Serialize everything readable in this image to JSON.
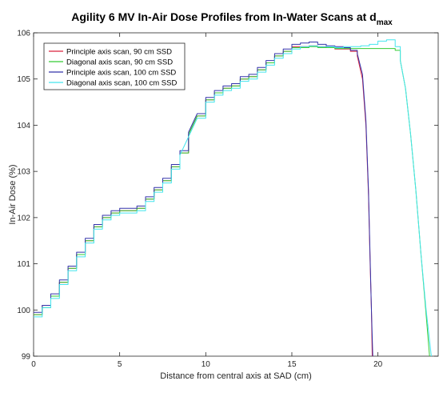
{
  "chart_data": {
    "type": "line",
    "title": "Agility 6 MV In-Air Dose Profiles from In-Water Scans at d",
    "title_subscript": "max",
    "xlabel": "Distance from central axis at SAD (cm)",
    "ylabel": "In-Air Dose (%)",
    "xlim": [
      0,
      23.5
    ],
    "ylim": [
      99,
      106
    ],
    "xticks": [
      0,
      5,
      10,
      15,
      20
    ],
    "yticks": [
      99,
      100,
      101,
      102,
      103,
      104,
      105,
      106
    ],
    "grid": false,
    "legend_position": "top-left",
    "series": [
      {
        "name": "Principle axis scan, 90 cm SSD",
        "color": "#d9213c",
        "x": [
          0,
          0.5,
          1,
          1.5,
          2,
          2.5,
          3,
          3.5,
          4,
          4.5,
          5,
          5.5,
          6,
          6.5,
          7,
          7.5,
          8,
          8.5,
          9,
          9.5,
          10,
          10.5,
          11,
          11.5,
          12,
          12.5,
          13,
          13.5,
          14,
          14.5,
          15,
          15.5,
          16,
          16.5,
          17,
          17.5,
          18,
          18.4,
          18.8,
          19.1,
          19.3,
          19.45,
          19.55,
          19.62,
          19.67
        ],
        "y": [
          99.9,
          100.1,
          100.3,
          100.6,
          100.9,
          101.2,
          101.5,
          101.8,
          102.0,
          102.1,
          102.15,
          102.15,
          102.2,
          102.4,
          102.6,
          102.8,
          103.1,
          103.4,
          103.8,
          104.2,
          104.55,
          104.7,
          104.8,
          104.85,
          105.0,
          105.05,
          105.2,
          105.35,
          105.5,
          105.6,
          105.7,
          105.7,
          105.72,
          105.7,
          105.68,
          105.65,
          105.65,
          105.6,
          105.5,
          105.0,
          104.0,
          102.5,
          101.0,
          100.0,
          99.0
        ]
      },
      {
        "name": "Diagonal axis scan, 90 cm SSD",
        "color": "#33cc33",
        "x": [
          0,
          0.5,
          1,
          1.5,
          2,
          2.5,
          3,
          3.5,
          4,
          4.5,
          5,
          5.5,
          6,
          6.5,
          7,
          7.5,
          8,
          8.5,
          9,
          9.5,
          10,
          10.5,
          11,
          11.5,
          12,
          12.5,
          13,
          13.5,
          14,
          14.5,
          15,
          15.5,
          16,
          16.5,
          17,
          17.5,
          18,
          18.5,
          19,
          19.5,
          20,
          20.5,
          21,
          21.3,
          21.6,
          21.9,
          22.2,
          22.5,
          22.8,
          23.0
        ],
        "y": [
          99.9,
          100.05,
          100.3,
          100.6,
          100.9,
          101.2,
          101.5,
          101.8,
          102.0,
          102.1,
          102.15,
          102.15,
          102.2,
          102.4,
          102.6,
          102.8,
          103.1,
          103.4,
          103.8,
          104.2,
          104.55,
          104.7,
          104.8,
          104.85,
          105.0,
          105.05,
          105.2,
          105.35,
          105.5,
          105.6,
          105.68,
          105.68,
          105.7,
          105.68,
          105.68,
          105.66,
          105.66,
          105.66,
          105.66,
          105.66,
          105.66,
          105.66,
          105.62,
          105.4,
          104.8,
          103.8,
          102.6,
          101.2,
          99.9,
          99.0
        ]
      },
      {
        "name": "Principle axis scan, 100 cm SSD",
        "color": "#3333aa",
        "x": [
          0,
          0.5,
          1,
          1.5,
          2,
          2.5,
          3,
          3.5,
          4,
          4.5,
          5,
          5.5,
          6,
          6.5,
          7,
          7.5,
          8,
          8.5,
          9,
          9.5,
          10,
          10.5,
          11,
          11.5,
          12,
          12.5,
          13,
          13.5,
          14,
          14.5,
          15,
          15.5,
          16,
          16.5,
          17,
          17.5,
          18,
          18.4,
          18.8,
          19.1,
          19.3,
          19.45,
          19.55,
          19.62,
          19.7
        ],
        "y": [
          99.95,
          100.1,
          100.35,
          100.65,
          100.95,
          101.25,
          101.55,
          101.85,
          102.05,
          102.15,
          102.2,
          102.2,
          102.25,
          102.45,
          102.65,
          102.85,
          103.15,
          103.45,
          103.85,
          104.25,
          104.6,
          104.75,
          104.85,
          104.9,
          105.05,
          105.1,
          105.25,
          105.4,
          105.55,
          105.65,
          105.75,
          105.78,
          105.8,
          105.75,
          105.72,
          105.7,
          105.68,
          105.62,
          105.55,
          105.1,
          104.1,
          102.6,
          101.1,
          100.0,
          99.0
        ]
      },
      {
        "name": "Diagonal axis scan, 100 cm SSD",
        "color": "#44e5ee",
        "x": [
          0,
          0.5,
          1,
          1.5,
          2,
          2.5,
          3,
          3.5,
          4,
          4.5,
          5,
          5.5,
          6,
          6.5,
          7,
          7.5,
          8,
          8.5,
          9,
          9.5,
          10,
          10.5,
          11,
          11.5,
          12,
          12.5,
          13,
          13.5,
          14,
          14.5,
          15,
          15.5,
          16,
          16.5,
          17,
          17.5,
          18,
          18.5,
          19,
          19.5,
          20,
          20.5,
          21,
          21.3,
          21.6,
          21.9,
          22.2,
          22.5,
          22.8,
          23.1
        ],
        "y": [
          99.85,
          100.05,
          100.25,
          100.55,
          100.85,
          101.15,
          101.45,
          101.75,
          101.95,
          102.05,
          102.1,
          102.1,
          102.15,
          102.35,
          102.55,
          102.75,
          103.05,
          103.35,
          103.75,
          104.15,
          104.5,
          104.65,
          104.75,
          104.8,
          104.95,
          105.0,
          105.15,
          105.3,
          105.45,
          105.55,
          105.65,
          105.7,
          105.72,
          105.7,
          105.7,
          105.68,
          105.7,
          105.7,
          105.72,
          105.75,
          105.82,
          105.85,
          105.7,
          105.4,
          104.8,
          103.8,
          102.6,
          101.2,
          100.0,
          99.0
        ]
      }
    ]
  }
}
